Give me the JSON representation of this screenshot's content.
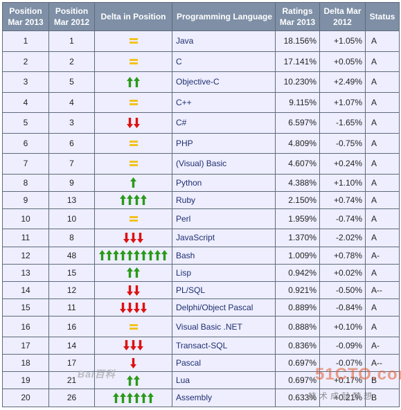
{
  "headers": {
    "pos2013": "Position Mar 2013",
    "pos2012": "Position Mar 2012",
    "delta_pos": "Delta in Position",
    "language": "Programming Language",
    "ratings": "Ratings Mar 2013",
    "delta": "Delta Mar 2012",
    "status": "Status"
  },
  "colors": {
    "header_bg": "#7e8fa6",
    "row_bg": "#eeeeff",
    "up_arrow": "#2a9a1a",
    "down_arrow": "#dd1111",
    "equal": "#f2c21e"
  },
  "rows": [
    {
      "p13": "1",
      "p12": "1",
      "move": "equal",
      "count": 0,
      "lang": "Java",
      "rating": "18.156%",
      "delta": "+1.05%",
      "status": "A"
    },
    {
      "p13": "2",
      "p12": "2",
      "move": "equal",
      "count": 0,
      "lang": "C",
      "rating": "17.141%",
      "delta": "+0.05%",
      "status": "A"
    },
    {
      "p13": "3",
      "p12": "5",
      "move": "up",
      "count": 2,
      "lang": "Objective-C",
      "rating": "10.230%",
      "delta": "+2.49%",
      "status": "A"
    },
    {
      "p13": "4",
      "p12": "4",
      "move": "equal",
      "count": 0,
      "lang": "C++",
      "rating": "9.115%",
      "delta": "+1.07%",
      "status": "A"
    },
    {
      "p13": "5",
      "p12": "3",
      "move": "down",
      "count": 2,
      "lang": "C#",
      "rating": "6.597%",
      "delta": "-1.65%",
      "status": "A"
    },
    {
      "p13": "6",
      "p12": "6",
      "move": "equal",
      "count": 0,
      "lang": "PHP",
      "rating": "4.809%",
      "delta": "-0.75%",
      "status": "A"
    },
    {
      "p13": "7",
      "p12": "7",
      "move": "equal",
      "count": 0,
      "lang": "(Visual) Basic",
      "rating": "4.607%",
      "delta": "+0.24%",
      "status": "A"
    },
    {
      "p13": "8",
      "p12": "9",
      "move": "up",
      "count": 1,
      "lang": "Python",
      "rating": "4.388%",
      "delta": "+1.10%",
      "status": "A"
    },
    {
      "p13": "9",
      "p12": "13",
      "move": "up",
      "count": 4,
      "lang": "Ruby",
      "rating": "2.150%",
      "delta": "+0.74%",
      "status": "A"
    },
    {
      "p13": "10",
      "p12": "10",
      "move": "equal",
      "count": 0,
      "lang": "Perl",
      "rating": "1.959%",
      "delta": "-0.74%",
      "status": "A"
    },
    {
      "p13": "11",
      "p12": "8",
      "move": "down",
      "count": 3,
      "lang": "JavaScript",
      "rating": "1.370%",
      "delta": "-2.02%",
      "status": "A"
    },
    {
      "p13": "12",
      "p12": "48",
      "move": "up",
      "count": 10,
      "lang": "Bash",
      "rating": "1.009%",
      "delta": "+0.78%",
      "status": "A-"
    },
    {
      "p13": "13",
      "p12": "15",
      "move": "up",
      "count": 2,
      "lang": "Lisp",
      "rating": "0.942%",
      "delta": "+0.02%",
      "status": "A"
    },
    {
      "p13": "14",
      "p12": "12",
      "move": "down",
      "count": 2,
      "lang": "PL/SQL",
      "rating": "0.921%",
      "delta": "-0.50%",
      "status": "A--"
    },
    {
      "p13": "15",
      "p12": "11",
      "move": "down",
      "count": 4,
      "lang": "Delphi/Object Pascal",
      "rating": "0.889%",
      "delta": "-0.84%",
      "status": "A"
    },
    {
      "p13": "16",
      "p12": "16",
      "move": "equal",
      "count": 0,
      "lang": "Visual Basic .NET",
      "rating": "0.888%",
      "delta": "+0.10%",
      "status": "A"
    },
    {
      "p13": "17",
      "p12": "14",
      "move": "down",
      "count": 3,
      "lang": "Transact-SQL",
      "rating": "0.836%",
      "delta": "-0.09%",
      "status": "A-"
    },
    {
      "p13": "18",
      "p12": "17",
      "move": "down",
      "count": 1,
      "lang": "Pascal",
      "rating": "0.697%",
      "delta": "-0.07%",
      "status": "A--"
    },
    {
      "p13": "19",
      "p12": "21",
      "move": "up",
      "count": 2,
      "lang": "Lua",
      "rating": "0.697%",
      "delta": "+0.17%",
      "status": "B"
    },
    {
      "p13": "20",
      "p12": "26",
      "move": "up",
      "count": 6,
      "lang": "Assembly",
      "rating": "0.633%",
      "delta": "+0.21%",
      "status": "B"
    }
  ],
  "watermarks": {
    "baidu": "Bai百科",
    "site": "51CTO.com",
    "slogan": "技术成就梦想"
  }
}
